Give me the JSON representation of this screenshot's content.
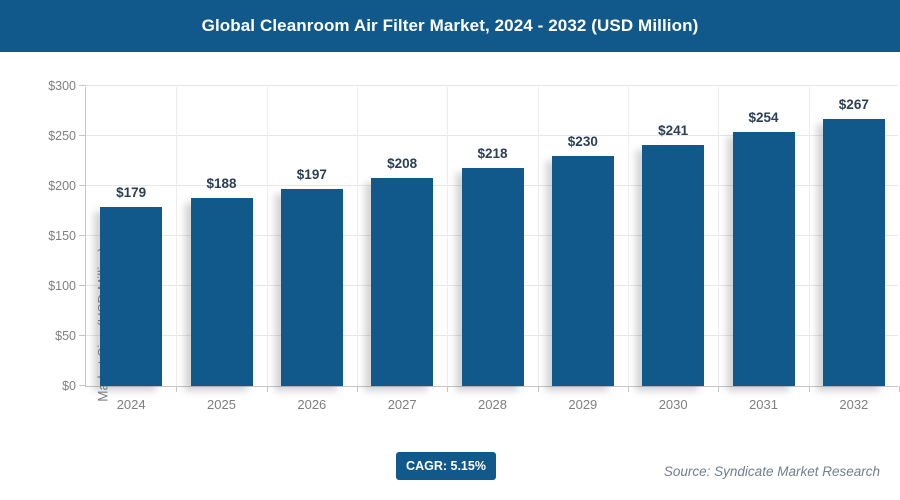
{
  "header": {
    "title": "Global Cleanroom Air Filter Market, 2024 - 2032 (USD Million)"
  },
  "colors": {
    "brand_blue": "#11598b",
    "value_label": "#2b3f55",
    "axis_text": "#7f7f7f",
    "gridline": "#e7e7e7",
    "source_text": "#6f7f8c"
  },
  "chart_data": {
    "type": "bar",
    "title": "Global Cleanroom Air Filter Market, 2024 - 2032 (USD Million)",
    "categories": [
      "2024",
      "2025",
      "2026",
      "2027",
      "2028",
      "2029",
      "2030",
      "2031",
      "2032"
    ],
    "values": [
      179,
      188,
      197,
      208,
      218,
      230,
      241,
      254,
      267
    ],
    "value_labels": [
      "$179",
      "$188",
      "$197",
      "$208",
      "$218",
      "$230",
      "$241",
      "$254",
      "$267"
    ],
    "xlabel": "",
    "ylabel": "Market Size (USD Million)",
    "ylim": [
      0,
      300
    ],
    "ytick_step": 50,
    "ytick_labels": [
      "$0",
      "$50",
      "$100",
      "$150",
      "$200",
      "$250",
      "$300"
    ],
    "grid": true,
    "legend": false,
    "bar_color": "#11598b"
  },
  "footer": {
    "cagr_label": "CAGR: 5.15%",
    "source": "Source: Syndicate Market Research"
  }
}
